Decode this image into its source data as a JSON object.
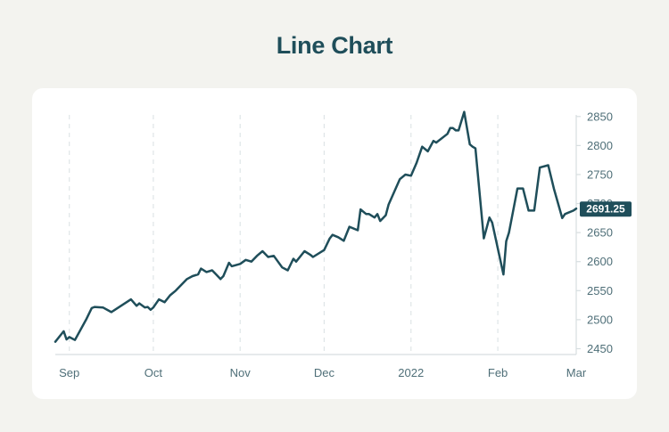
{
  "title": "Line Chart",
  "colors": {
    "line": "#1f4e5a",
    "badge": "#1f4e5a",
    "axis": "#d7dee0",
    "grid": "#dfe5e7",
    "tick_text": "#4f6f78"
  },
  "last_value_label": "2691.25",
  "chart_data": {
    "type": "line",
    "title": "Line Chart",
    "xlabel": "",
    "ylabel": "",
    "grid": "vertical dashed",
    "y_axis_position": "right",
    "xlim": [
      "2021-08-27",
      "2022-03-01"
    ],
    "ylim": [
      2440,
      2865
    ],
    "x_ticks": [
      {
        "date": "2021-09-01",
        "label": "Sep"
      },
      {
        "date": "2021-10-01",
        "label": "Oct"
      },
      {
        "date": "2021-11-01",
        "label": "Nov"
      },
      {
        "date": "2021-12-01",
        "label": "Dec"
      },
      {
        "date": "2022-01-01",
        "label": "2022"
      },
      {
        "date": "2022-02-01",
        "label": "Feb"
      },
      {
        "date": "2022-03-01",
        "label": "Mar"
      }
    ],
    "y_ticks": [
      2450,
      2500,
      2550,
      2600,
      2650,
      2700,
      2750,
      2800,
      2850
    ],
    "series": [
      {
        "x": [
          "2021-08-27",
          "2021-08-30",
          "2021-08-31",
          "2021-09-01",
          "2021-09-03",
          "2021-09-07",
          "2021-09-09",
          "2021-09-10",
          "2021-09-13",
          "2021-09-16",
          "2021-09-23",
          "2021-09-25",
          "2021-09-26",
          "2021-09-28",
          "2021-09-29",
          "2021-09-30",
          "2021-10-01",
          "2021-10-03",
          "2021-10-05",
          "2021-10-07",
          "2021-10-09",
          "2021-10-11",
          "2021-10-13",
          "2021-10-15",
          "2021-10-17",
          "2021-10-18",
          "2021-10-20",
          "2021-10-22",
          "2021-10-23",
          "2021-10-25",
          "2021-10-26",
          "2021-10-28",
          "2021-10-29",
          "2021-11-01",
          "2021-11-03",
          "2021-11-05",
          "2021-11-07",
          "2021-11-09",
          "2021-11-11",
          "2021-11-13",
          "2021-11-16",
          "2021-11-18",
          "2021-11-20",
          "2021-11-21",
          "2021-11-24",
          "2021-11-26",
          "2021-11-27",
          "2021-12-01",
          "2021-12-03",
          "2021-12-04",
          "2021-12-06",
          "2021-12-08",
          "2021-12-10",
          "2021-12-13",
          "2021-12-14",
          "2021-12-16",
          "2021-12-17",
          "2021-12-19",
          "2021-12-20",
          "2021-12-21",
          "2021-12-23",
          "2021-12-24",
          "2021-12-26",
          "2021-12-28",
          "2021-12-30",
          "2022-01-01",
          "2022-01-03",
          "2022-01-05",
          "2022-01-07",
          "2022-01-09",
          "2022-01-10",
          "2022-01-14",
          "2022-01-15",
          "2022-01-16",
          "2022-01-17",
          "2022-01-18",
          "2022-01-20",
          "2022-01-22",
          "2022-01-23",
          "2022-01-24",
          "2022-01-27",
          "2022-01-29",
          "2022-01-30",
          "2022-02-03",
          "2022-02-04",
          "2022-02-05",
          "2022-02-08",
          "2022-02-10",
          "2022-02-12",
          "2022-02-14",
          "2022-02-16",
          "2022-02-19",
          "2022-02-21",
          "2022-02-24",
          "2022-02-25",
          "2022-02-28",
          "2022-03-01"
        ],
        "values": [
          2462,
          2480,
          2466,
          2470,
          2465,
          2500,
          2520,
          2522,
          2521,
          2513,
          2535,
          2524,
          2528,
          2521,
          2522,
          2517,
          2521,
          2535,
          2530,
          2542,
          2550,
          2560,
          2570,
          2575,
          2578,
          2588,
          2582,
          2585,
          2580,
          2570,
          2575,
          2598,
          2592,
          2596,
          2603,
          2600,
          2610,
          2618,
          2608,
          2610,
          2590,
          2585,
          2605,
          2600,
          2618,
          2612,
          2608,
          2620,
          2640,
          2646,
          2642,
          2636,
          2660,
          2654,
          2690,
          2682,
          2682,
          2676,
          2682,
          2670,
          2680,
          2698,
          2720,
          2742,
          2750,
          2748,
          2770,
          2798,
          2790,
          2808,
          2805,
          2820,
          2830,
          2830,
          2826,
          2826,
          2858,
          2802,
          2798,
          2795,
          2640,
          2676,
          2667,
          2578,
          2635,
          2650,
          2726,
          2726,
          2688,
          2688,
          2762,
          2766,
          2726,
          2675,
          2682,
          2688,
          2691.25
        ]
      }
    ]
  }
}
